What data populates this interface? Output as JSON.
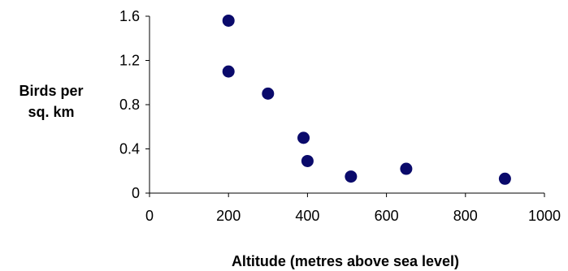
{
  "chart_data": {
    "type": "scatter",
    "title": "",
    "xlabel": "Altitude (metres above sea level)",
    "ylabel_lines": [
      "Birds per",
      "sq. km"
    ],
    "xlim": [
      0,
      1000
    ],
    "ylim": [
      0,
      1.6
    ],
    "xticks": [
      0,
      200,
      400,
      600,
      800,
      1000
    ],
    "yticks": [
      0,
      0.4,
      0.8,
      1.2,
      1.6
    ],
    "xtick_labels": [
      "0",
      "200",
      "400",
      "600",
      "800",
      "1000"
    ],
    "ytick_labels": [
      "0",
      "0.4",
      "0.8",
      "1.2",
      "1.6"
    ],
    "grid": false,
    "legend": "none",
    "marker_color": "#0a0a6b",
    "points": [
      {
        "x": 200,
        "y": 1.56
      },
      {
        "x": 200,
        "y": 1.1
      },
      {
        "x": 300,
        "y": 0.9
      },
      {
        "x": 390,
        "y": 0.5
      },
      {
        "x": 400,
        "y": 0.29
      },
      {
        "x": 510,
        "y": 0.15
      },
      {
        "x": 650,
        "y": 0.22
      },
      {
        "x": 900,
        "y": 0.13
      }
    ]
  }
}
